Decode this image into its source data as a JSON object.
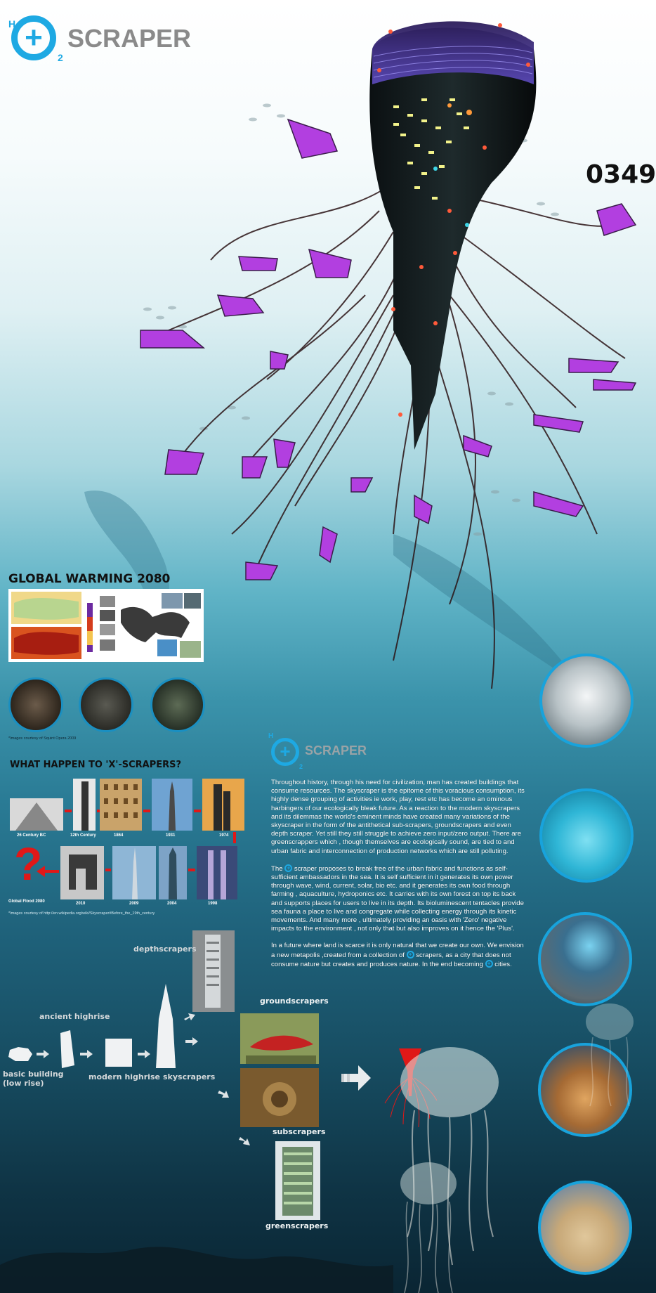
{
  "header": {
    "logo_sup": "H",
    "logo_sub": "2",
    "logo_word": "SCRAPER",
    "project_code": "0349"
  },
  "global_warming": {
    "title": "GLOBAL WARMING 2080",
    "credit": "*Images courtesy of Squint Opera 2009"
  },
  "scrapers_history": {
    "title": "WHAT HAPPEN TO 'X'-SCRAPERS?",
    "timeline": [
      "26 Century BC",
      "12th Century",
      "1864",
      "1931",
      "1974",
      "1998",
      "2004",
      "2009",
      "2010",
      "Global Flood 2080"
    ],
    "question_mark": "?",
    "credit": "*Images courtesy of http://en.wikipedia.org/wiki/Skyscraper#Before_the_19th_century"
  },
  "mid_logo": {
    "sup": "H",
    "sub": "2",
    "word": "SCRAPER"
  },
  "description": {
    "p1": "Throughout history, through his need for civilization, man has created buildings that consume resources. The skyscraper is the epitome of this voracious consumption, its highly dense grouping of activities ie work, play, rest etc has become an ominous harbingers of our ecologically bleak future. As a reaction to the modern skyscrapers and its dilemmas the world's eminent minds have created many variations of the skyscraper in the form of the antithetical sub-scrapers, groundscrapers and even depth scraper. Yet still they still struggle to achieve zero input/zero output. There are greenscrappers which , though themselves are ecologically sound, are tied to and urban fabric and interconnection of production networks which are still polluting.",
    "p2_pre": "The",
    "p2_post": "scraper  proposes to break free of the urban fabric and functions as self-sufficient ambassadors in the sea. It is self sufficient in it generates its  own power through wave, wind, current, solar, bio etc. and it generates its own food through farming , aquaculture, hydroponics etc. It carries with its own forest on top its back and supports places for users to live in its depth. Its bioluminescent tentacles provide sea fauna a place to live and congregate while collecting energy through its kinetic movements. And many more , ultimately providing an oasis with 'Zero' negative impacts to the environment , not only that but also improves on it hence the 'Plus'.",
    "p3_a": " In a future where land is scarce it is only natural that we create our own. We envision a new metapolis ,created from a collection of",
    "p3_b": "scrapers,   as a city that does not consume nature but creates and produces nature.  In the end  becoming",
    "p3_c": "cities."
  },
  "evolution": {
    "basic": "basic building\n(low rise)",
    "ancient": "ancient highrise",
    "modern": "modern highrise",
    "sky": "skyscrapers",
    "depth": "depthscrapers",
    "ground": "groundscrapers",
    "sub": "subscrapers",
    "green": "greenscrapers"
  },
  "colors": {
    "accent": "#1ea9e3",
    "tentacle_purple": "#b23fe0",
    "timeline_red": "#e01818"
  }
}
